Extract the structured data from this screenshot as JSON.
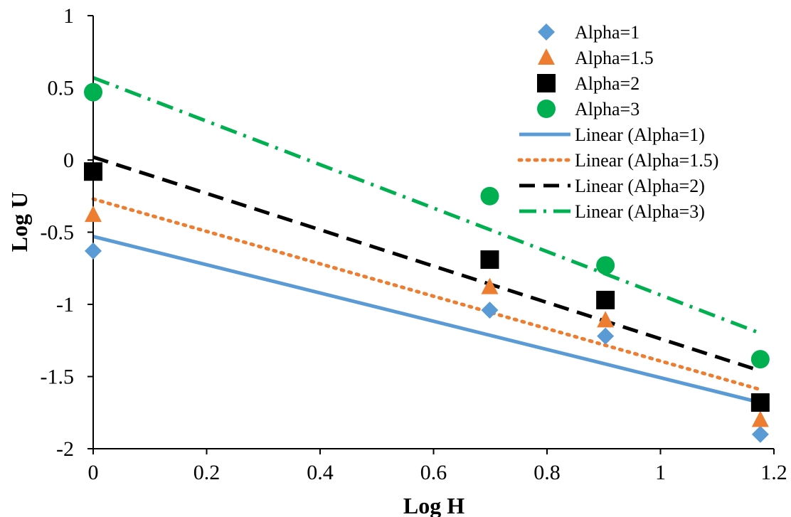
{
  "chart_data": {
    "type": "scatter",
    "xlabel": "Log H",
    "ylabel": "Log U",
    "xlim": [
      0,
      1.2
    ],
    "ylim": [
      -2,
      1
    ],
    "xticks": [
      0,
      0.2,
      0.4,
      0.6,
      0.8,
      1,
      1.2
    ],
    "yticks": [
      1,
      0.5,
      0,
      -0.5,
      -1,
      -1.5,
      -2
    ],
    "x_tick_labels": [
      "0",
      "0.2",
      "0.4",
      "0.6",
      "0.8",
      "1",
      "1.2"
    ],
    "y_tick_labels": [
      "1",
      "0.5",
      "0",
      "-0.5",
      "-1",
      "-1.5",
      "-2"
    ],
    "grid": false,
    "legend_position": "top-right",
    "series": [
      {
        "name": "Alpha=1",
        "marker": "diamond",
        "color": "#5b9bd5",
        "x": [
          0,
          0.699,
          0.903,
          1.176
        ],
        "y": [
          -0.63,
          -1.04,
          -1.22,
          -1.9
        ]
      },
      {
        "name": "Alpha=1.5",
        "marker": "triangle",
        "color": "#ed7d31",
        "x": [
          0,
          0.699,
          0.903,
          1.176
        ],
        "y": [
          -0.38,
          -0.88,
          -1.11,
          -1.8
        ]
      },
      {
        "name": "Alpha=2",
        "marker": "square",
        "color": "#000000",
        "x": [
          0,
          0.699,
          0.903,
          1.176
        ],
        "y": [
          -0.08,
          -0.69,
          -0.97,
          -1.68
        ]
      },
      {
        "name": "Alpha=3",
        "marker": "circle",
        "color": "#00b050",
        "x": [
          0,
          0.699,
          0.903,
          1.176
        ],
        "y": [
          0.47,
          -0.25,
          -0.73,
          -1.38
        ]
      }
    ],
    "trendlines": [
      {
        "name": "Linear (Alpha=1)",
        "style": "solid",
        "color": "#5b9bd5",
        "x": [
          0,
          1.176
        ],
        "y": [
          -0.53,
          -1.68
        ]
      },
      {
        "name": "Linear (Alpha=1.5)",
        "style": "dotted",
        "color": "#ed7d31",
        "x": [
          0,
          1.176
        ],
        "y": [
          -0.27,
          -1.59
        ]
      },
      {
        "name": "Linear (Alpha=2)",
        "style": "dashed",
        "color": "#000000",
        "x": [
          0,
          1.176
        ],
        "y": [
          0.02,
          -1.46
        ]
      },
      {
        "name": "Linear (Alpha=3)",
        "style": "dashdot",
        "color": "#00b050",
        "x": [
          0,
          1.176
        ],
        "y": [
          0.57,
          -1.2
        ]
      }
    ]
  }
}
